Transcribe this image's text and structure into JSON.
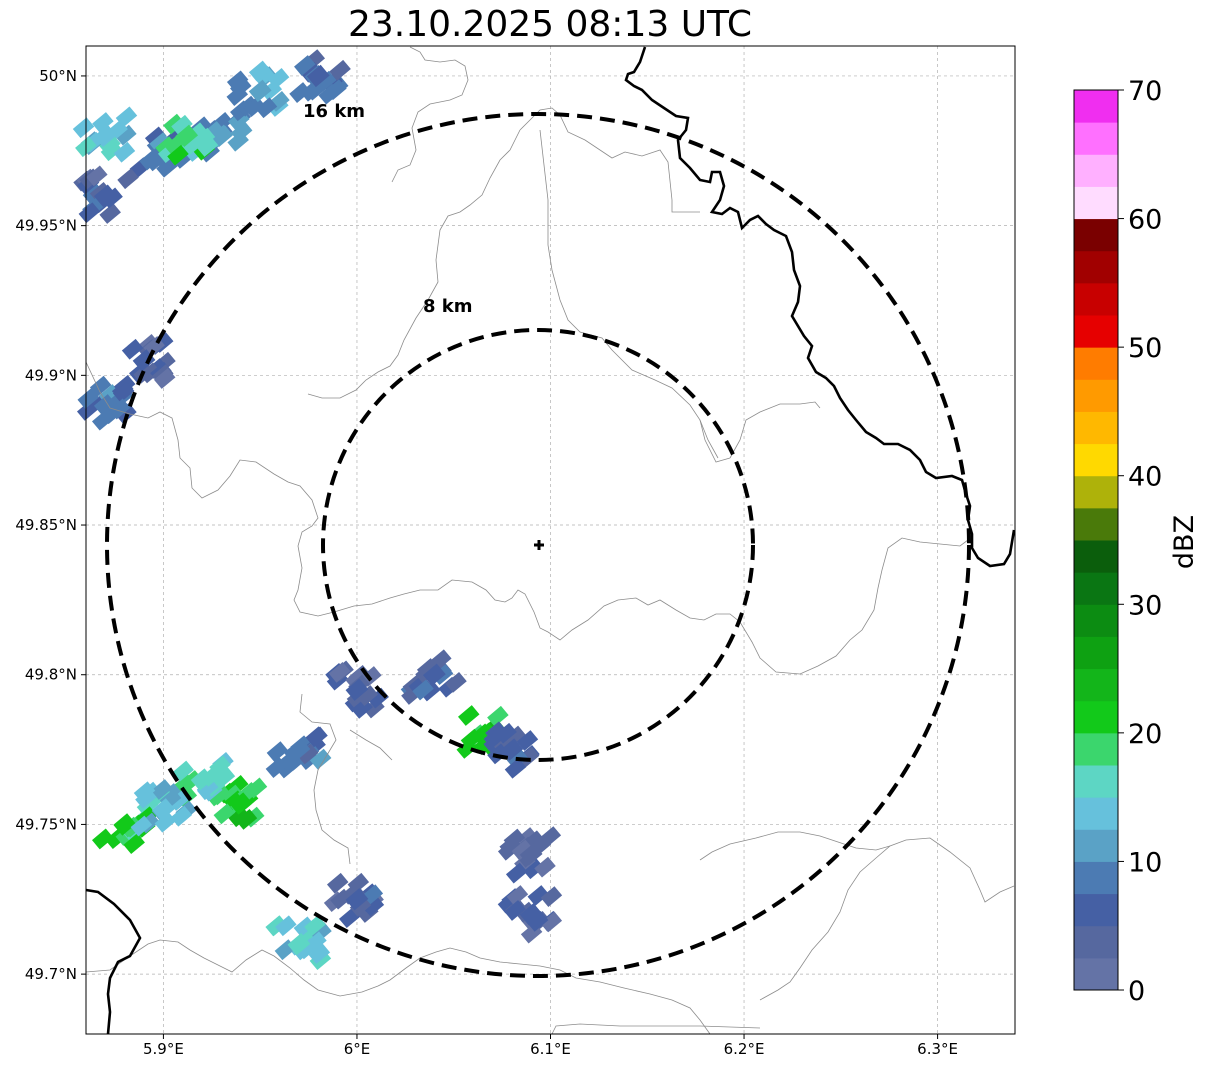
{
  "title": "23.10.2025 08:13 UTC",
  "map": {
    "lon_range": [
      5.86,
      6.34
    ],
    "lat_range": [
      49.68,
      50.01
    ],
    "lon_ticks": [
      5.9,
      6.0,
      6.1,
      6.2,
      6.3
    ],
    "lon_tick_labels": [
      "5.9°E",
      "6°E",
      "6.1°E",
      "6.2°E",
      "6.3°E"
    ],
    "lat_ticks": [
      49.7,
      49.75,
      49.8,
      49.85,
      49.9,
      49.95,
      50.0
    ],
    "lat_tick_labels": [
      "49.7°N",
      "49.75°N",
      "49.8°N",
      "49.85°N",
      "49.9°N",
      "49.95°N",
      "50°N"
    ],
    "gridlines": true,
    "radar_site": {
      "lon": 6.095,
      "lat": 49.843
    },
    "range_rings": [
      {
        "label": "8 km",
        "radius_km": 8
      },
      {
        "label": "16 km",
        "radius_km": 16
      }
    ],
    "echoes": [
      {
        "lon": 5.9,
        "lat": 49.975,
        "dbz": 8
      },
      {
        "lon": 5.93,
        "lat": 49.98,
        "dbz": 10
      },
      {
        "lon": 5.95,
        "lat": 49.995,
        "dbz": 12
      },
      {
        "lon": 5.912,
        "lat": 49.98,
        "dbz": 18
      },
      {
        "lon": 5.87,
        "lat": 49.98,
        "dbz": 14
      },
      {
        "lon": 5.87,
        "lat": 49.96,
        "dbz": 6
      },
      {
        "lon": 5.98,
        "lat": 50.0,
        "dbz": 7
      },
      {
        "lon": 5.87,
        "lat": 49.89,
        "dbz": 9
      },
      {
        "lon": 5.89,
        "lat": 49.905,
        "dbz": 5
      },
      {
        "lon": 6.0,
        "lat": 49.795,
        "dbz": 5
      },
      {
        "lon": 6.04,
        "lat": 49.8,
        "dbz": 6
      },
      {
        "lon": 6.065,
        "lat": 49.78,
        "dbz": 22
      },
      {
        "lon": 6.08,
        "lat": 49.775,
        "dbz": 7
      },
      {
        "lon": 5.88,
        "lat": 49.75,
        "dbz": 20
      },
      {
        "lon": 5.94,
        "lat": 49.757,
        "dbz": 21
      },
      {
        "lon": 5.92,
        "lat": 49.765,
        "dbz": 17
      },
      {
        "lon": 5.9,
        "lat": 49.755,
        "dbz": 14
      },
      {
        "lon": 5.97,
        "lat": 49.775,
        "dbz": 8
      },
      {
        "lon": 6.09,
        "lat": 49.74,
        "dbz": 4
      },
      {
        "lon": 6.09,
        "lat": 49.72,
        "dbz": 5
      },
      {
        "lon": 6.0,
        "lat": 49.725,
        "dbz": 6
      },
      {
        "lon": 5.97,
        "lat": 49.71,
        "dbz": 15
      }
    ]
  },
  "colorbar": {
    "label": "dBZ",
    "min": 0,
    "max": 70,
    "step": 2.5,
    "tick_values": [
      0,
      10,
      20,
      30,
      40,
      50,
      60,
      70
    ],
    "tick_labels": [
      "0",
      "10",
      "20",
      "30",
      "40",
      "50",
      "60",
      "70"
    ],
    "colors": [
      "#6473a6",
      "#56689f",
      "#4560a4",
      "#4c7bb3",
      "#5aa2c6",
      "#66c1dc",
      "#5dd6c4",
      "#3bd66d",
      "#12c91a",
      "#13b51a",
      "#0ea112",
      "#0c8c12",
      "#0a7613",
      "#0b5e0c",
      "#4a7a0a",
      "#aeb20a",
      "#ffd900",
      "#ffb800",
      "#ff9a00",
      "#ff7c00",
      "#e60000",
      "#c80000",
      "#a10000",
      "#7a0000",
      "#ffdcff",
      "#ffb0ff",
      "#ff70ff",
      "#f02ef0"
    ]
  }
}
